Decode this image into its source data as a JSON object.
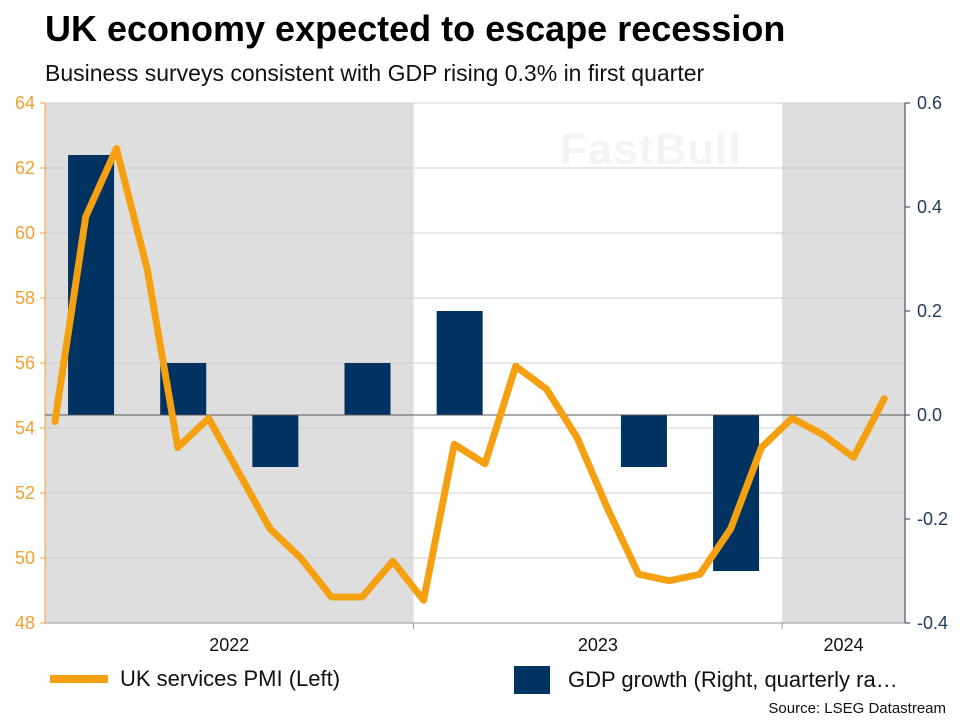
{
  "chart_data": {
    "type": "bar+line",
    "title": "UK economy expected to escape recession",
    "subtitle": "Business surveys consistent with GDP rising 0.3% in first quarter",
    "source": "Source: LSEG Datastream",
    "watermark": "FastBull",
    "x_tick_labels": [
      "2022",
      "2023",
      "2024"
    ],
    "shaded_years": [
      "2022",
      "2024"
    ],
    "y_left": {
      "range": [
        48,
        64
      ],
      "ticks": [
        "48",
        "50",
        "52",
        "54",
        "56",
        "58",
        "60",
        "62",
        "64"
      ],
      "color": "#f0a030"
    },
    "y_right": {
      "range": [
        -0.4,
        0.6
      ],
      "ticks": [
        "-0.4",
        "-0.2",
        "0.0",
        "0.2",
        "0.4",
        "0.6"
      ],
      "color": "#1e3a5a"
    },
    "grid": true,
    "legend_position": "bottom",
    "series": [
      {
        "name": "UK services PMI (Left)",
        "type": "line",
        "axis": "left",
        "color": "#f5a011",
        "x": [
          "2022-01",
          "2022-02",
          "2022-03",
          "2022-04",
          "2022-05",
          "2022-06",
          "2022-07",
          "2022-08",
          "2022-09",
          "2022-10",
          "2022-11",
          "2022-12",
          "2023-01",
          "2023-02",
          "2023-03",
          "2023-04",
          "2023-05",
          "2023-06",
          "2023-07",
          "2023-08",
          "2023-09",
          "2023-10",
          "2023-11",
          "2023-12",
          "2024-01",
          "2024-02",
          "2024-03",
          "2024-04"
        ],
        "values": [
          54.2,
          60.5,
          62.6,
          58.9,
          53.4,
          54.3,
          52.6,
          50.9,
          50.0,
          48.8,
          48.8,
          49.9,
          48.7,
          53.5,
          52.9,
          55.9,
          55.2,
          53.7,
          51.5,
          49.5,
          49.3,
          49.5,
          50.9,
          53.4,
          54.3,
          53.8,
          53.1,
          54.9
        ]
      },
      {
        "name": "GDP growth (Right, quarterly ra…",
        "type": "bar",
        "axis": "right",
        "color": "#003262",
        "x": [
          "2022-Q1",
          "2022-Q2",
          "2022-Q3",
          "2022-Q4",
          "2023-Q1",
          "2023-Q2",
          "2023-Q3",
          "2023-Q4"
        ],
        "values": [
          0.5,
          0.1,
          -0.1,
          0.1,
          0.2,
          0.0,
          -0.1,
          -0.3
        ]
      }
    ]
  }
}
